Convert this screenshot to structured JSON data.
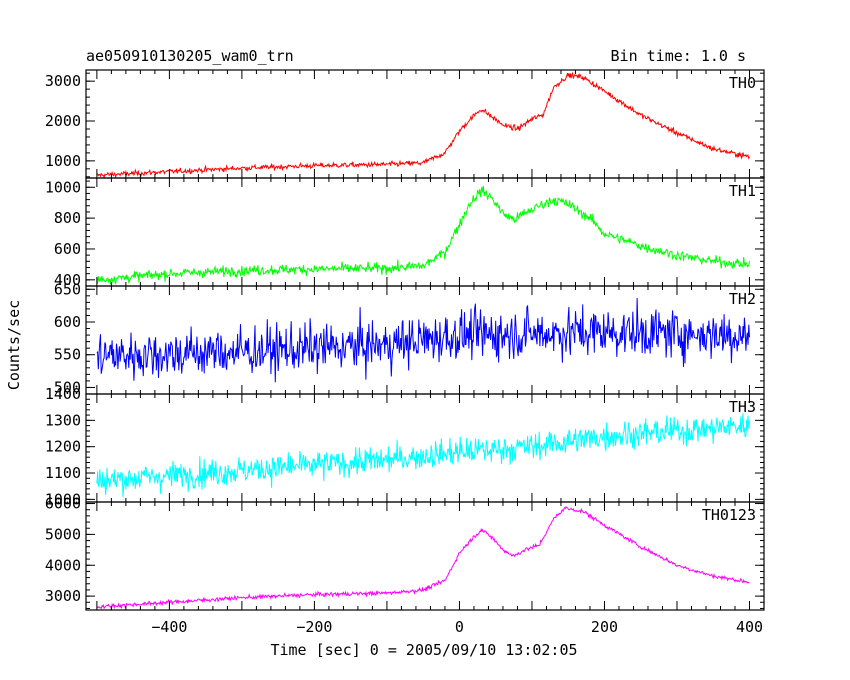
{
  "header": {
    "title": "ae050910130205_wam0_trn",
    "bin_time": "Bin time: 1.0 s"
  },
  "axes": {
    "xlabel": "Time [sec] 0 = 2005/09/10 13:02:05",
    "ylabel": "Counts/sec",
    "xticks": [
      "−400",
      "−200",
      "0",
      "200",
      "400"
    ]
  },
  "chart_data": {
    "type": "line",
    "xlim": [
      -515,
      420
    ],
    "xticks": [
      -400,
      -200,
      0,
      200,
      400
    ],
    "xlabel": "Time [sec] 0 = 2005/09/10 13:02:05",
    "ylabel": "Counts/sec",
    "title": "ae050910130205_wam0_trn",
    "bin_time_s": 1.0,
    "series": [
      {
        "name": "TH0",
        "color": "#ff0000",
        "ylim": [
          570,
          3280
        ],
        "yticks": [
          1000,
          2000,
          3000
        ],
        "noise": 55,
        "profile": [
          [
            -500,
            640
          ],
          [
            -400,
            730
          ],
          [
            -300,
            820
          ],
          [
            -200,
            880
          ],
          [
            -100,
            910
          ],
          [
            -50,
            950
          ],
          [
            -20,
            1200
          ],
          [
            0,
            1750
          ],
          [
            15,
            2050
          ],
          [
            30,
            2300
          ],
          [
            45,
            2100
          ],
          [
            60,
            1900
          ],
          [
            80,
            1800
          ],
          [
            100,
            2050
          ],
          [
            115,
            2150
          ],
          [
            130,
            2850
          ],
          [
            150,
            3150
          ],
          [
            170,
            3100
          ],
          [
            200,
            2750
          ],
          [
            250,
            2150
          ],
          [
            300,
            1700
          ],
          [
            350,
            1300
          ],
          [
            400,
            1100
          ]
        ]
      },
      {
        "name": "TH1",
        "color": "#00ff00",
        "ylim": [
          360,
          1060
        ],
        "yticks": [
          400,
          600,
          800,
          1000
        ],
        "noise": 28,
        "profile": [
          [
            -500,
            400
          ],
          [
            -400,
            440
          ],
          [
            -300,
            460
          ],
          [
            -200,
            470
          ],
          [
            -100,
            475
          ],
          [
            -50,
            490
          ],
          [
            -20,
            580
          ],
          [
            0,
            760
          ],
          [
            15,
            900
          ],
          [
            30,
            980
          ],
          [
            45,
            930
          ],
          [
            60,
            830
          ],
          [
            75,
            790
          ],
          [
            90,
            830
          ],
          [
            110,
            880
          ],
          [
            130,
            920
          ],
          [
            150,
            890
          ],
          [
            180,
            800
          ],
          [
            200,
            700
          ],
          [
            250,
            620
          ],
          [
            300,
            560
          ],
          [
            350,
            520
          ],
          [
            400,
            500
          ]
        ]
      },
      {
        "name": "TH2",
        "color": "#0000ff",
        "ylim": [
          490,
          655
        ],
        "yticks": [
          500,
          550,
          600,
          650
        ],
        "noise": 32,
        "profile": [
          [
            -500,
            548
          ],
          [
            -300,
            555
          ],
          [
            -100,
            565
          ],
          [
            0,
            580
          ],
          [
            200,
            585
          ],
          [
            400,
            580
          ]
        ]
      },
      {
        "name": "TH3",
        "color": "#00ffff",
        "ylim": [
          990,
          1400
        ],
        "yticks": [
          1000,
          1100,
          1200,
          1300,
          1400
        ],
        "noise": 45,
        "profile": [
          [
            -500,
            1070
          ],
          [
            -300,
            1110
          ],
          [
            -100,
            1150
          ],
          [
            0,
            1180
          ],
          [
            100,
            1200
          ],
          [
            200,
            1240
          ],
          [
            300,
            1260
          ],
          [
            400,
            1280
          ]
        ]
      },
      {
        "name": "TH0123",
        "color": "#ff00ff",
        "ylim": [
          2550,
          6050
        ],
        "yticks": [
          3000,
          4000,
          5000,
          6000
        ],
        "noise": 55,
        "profile": [
          [
            -500,
            2650
          ],
          [
            -400,
            2800
          ],
          [
            -300,
            2950
          ],
          [
            -200,
            3050
          ],
          [
            -100,
            3100
          ],
          [
            -50,
            3200
          ],
          [
            -20,
            3500
          ],
          [
            0,
            4400
          ],
          [
            15,
            4800
          ],
          [
            30,
            5150
          ],
          [
            45,
            4900
          ],
          [
            60,
            4500
          ],
          [
            75,
            4300
          ],
          [
            90,
            4500
          ],
          [
            110,
            4650
          ],
          [
            130,
            5500
          ],
          [
            145,
            5850
          ],
          [
            170,
            5750
          ],
          [
            200,
            5300
          ],
          [
            250,
            4600
          ],
          [
            300,
            4000
          ],
          [
            350,
            3650
          ],
          [
            400,
            3450
          ]
        ]
      }
    ]
  }
}
